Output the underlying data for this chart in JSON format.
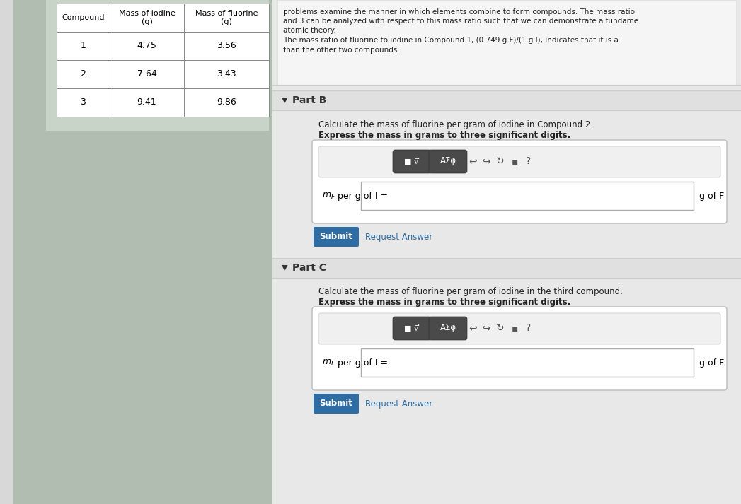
{
  "bg_color": "#c8d0c8",
  "left_panel_bg": "#b0bdb0",
  "right_panel_bg": "#e8e8e8",
  "white_box_bg": "#f2f2f2",
  "table_bg": "#ffffff",
  "table_border": "#888888",
  "table_compounds": [
    "1",
    "2",
    "3"
  ],
  "table_iodine": [
    "4.75",
    "7.64",
    "9.41"
  ],
  "table_fluorine": [
    "3.56",
    "3.43",
    "9.86"
  ],
  "top_text_lines": [
    "problems examine the manner in which elements combine to form compounds. The mass ratio",
    "and 3 can be analyzed with respect to this mass ratio such that we can demonstrate a fundame",
    "atomic theory."
  ],
  "ratio_line1": "The mass ratio of fluorine to iodine in Compound 1, (0.749 g F)/(1 g I), indicates that it is a",
  "ratio_line2": "than the other two compounds.",
  "partB_label": "Part B",
  "partB_desc1": "Calculate the mass of fluorine per gram of iodine in Compound 2.",
  "partB_desc2": "Express the mass in grams to three significant digits.",
  "partB_unit": "g of F",
  "partC_label": "Part C",
  "partC_desc1": "Calculate the mass of fluorine per gram of iodine in the third compound.",
  "partC_desc2": "Express the mass in grams to three significant digits.",
  "partC_unit": "g of F",
  "submit_bg": "#2e6da4",
  "submit_text": "Submit",
  "request_answer_text": "Request Answer",
  "divider_color": "#cccccc",
  "input_border": "#bbbbbb",
  "toolbar_dark": "#4a4a4a",
  "toolbar_light": "#e0e0e0"
}
